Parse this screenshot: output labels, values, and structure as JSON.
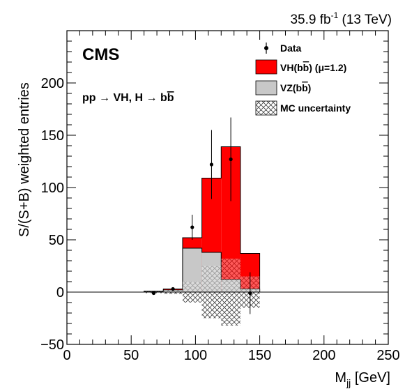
{
  "chart_data": {
    "type": "bar",
    "luminosity": "35.9 fb",
    "luminosity_exp": "-1",
    "energy": " (13 TeV)",
    "experiment": "CMS",
    "process": "pp → VH, H → bb",
    "xlabel": "M",
    "xlabel_sub": "jj",
    "xlabel_unit": " [GeV]",
    "ylabel": "S/(S+B) weighted entries",
    "xlim": [
      0,
      250
    ],
    "ylim": [
      -50,
      250
    ],
    "xticks": [
      "0",
      "50",
      "100",
      "150",
      "200",
      "250"
    ],
    "yticks": [
      "−50",
      "0",
      "50",
      "100",
      "150",
      "200"
    ],
    "bin_edges": [
      60,
      75,
      90,
      105,
      120,
      135,
      150
    ],
    "series": [
      {
        "name": "VH(bb) (μ=1.2)",
        "color": "#ff0000",
        "values": [
          1,
          3,
          52,
          109,
          139,
          37
        ]
      },
      {
        "name": "VZ(bb)",
        "color": "#c8c8c8",
        "values": [
          0.5,
          2,
          42,
          38,
          12,
          3
        ]
      }
    ],
    "mc_uncertainty": {
      "name": "MC uncertainty",
      "low": [
        -1,
        -2,
        -10,
        -25,
        -32,
        -15
      ],
      "high": [
        1,
        2,
        10,
        25,
        32,
        15
      ]
    },
    "data": {
      "name": "Data",
      "x": [
        67.5,
        82.5,
        97.5,
        112.5,
        127.5,
        142.5
      ],
      "y": [
        -1,
        3,
        62,
        122,
        127,
        -1
      ],
      "err": [
        1,
        1,
        12,
        33,
        40,
        20
      ]
    },
    "legend_position": "top-right"
  }
}
